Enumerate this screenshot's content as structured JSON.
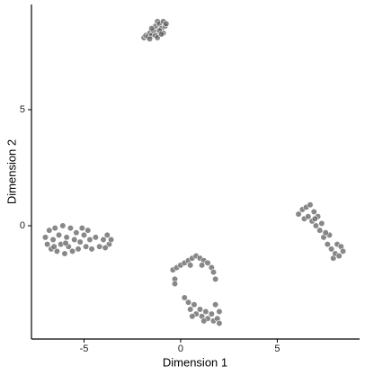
{
  "chart_data": {
    "type": "scatter",
    "x_label": "Dimension 1",
    "y_label": "Dimension 2",
    "color": "#555555",
    "xlim": [
      -7.72,
      9.26
    ],
    "ylim": [
      -4.88,
      9.53
    ],
    "xticks": [
      -5,
      0,
      5
    ],
    "yticks": [
      0,
      5
    ],
    "grid": false,
    "x": [
      -1.9,
      -1.8,
      -1.7,
      -1.6,
      -1.5,
      -1.4,
      -1.3,
      -1.2,
      -1.1,
      -1.0,
      -0.9,
      -0.8,
      -0.9,
      -1.3,
      -1.1,
      -0.75,
      -1.5,
      -1.2,
      -1.0,
      -1.6,
      -7.0,
      -6.9,
      -6.8,
      -6.7,
      -6.6,
      -6.5,
      -6.4,
      -6.3,
      -6.2,
      -6.1,
      -6.0,
      -5.9,
      -5.8,
      -5.7,
      -5.6,
      -5.5,
      -5.4,
      -5.3,
      -5.2,
      -5.1,
      -5.0,
      -4.9,
      -4.8,
      -4.7,
      -4.6,
      -4.4,
      -4.2,
      -4.0,
      -3.8,
      -3.7,
      -3.6,
      -3.9,
      -5.95,
      -6.55,
      -0.4,
      -0.3,
      -0.2,
      -0.3,
      0.0,
      0.2,
      0.4,
      0.6,
      0.8,
      1.0,
      1.2,
      1.4,
      1.6,
      1.7,
      1.8,
      0.5,
      1.1,
      0.2,
      0.4,
      0.5,
      0.7,
      0.8,
      1.0,
      1.1,
      1.3,
      1.4,
      1.6,
      1.7,
      1.9,
      2.0,
      1.8,
      2.0,
      0.6,
      1.2,
      6.1,
      6.3,
      6.4,
      6.5,
      6.6,
      6.7,
      6.8,
      6.9,
      7.0,
      7.1,
      7.2,
      7.3,
      7.4,
      7.6,
      7.7,
      7.8,
      7.9,
      8.0,
      8.1,
      8.2,
      8.3,
      8.4,
      7.5,
      6.95
    ],
    "values": [
      8.1,
      8.2,
      8.15,
      8.3,
      8.2,
      8.4,
      8.6,
      8.8,
      8.7,
      8.5,
      8.3,
      8.6,
      8.8,
      8.2,
      8.4,
      8.7,
      8.5,
      8.1,
      8.25,
      8.05,
      -0.5,
      -0.8,
      -0.2,
      -1.0,
      -0.6,
      -0.1,
      -1.1,
      -0.4,
      -0.8,
      0.0,
      -1.2,
      -0.5,
      -0.9,
      -0.1,
      -1.1,
      -0.6,
      -0.3,
      -1.0,
      -0.7,
      -0.1,
      -0.4,
      -0.9,
      -0.2,
      -0.6,
      -1.0,
      -0.5,
      -0.9,
      -0.6,
      -0.4,
      -0.8,
      -0.6,
      -0.95,
      -0.75,
      -0.9,
      -1.9,
      -2.3,
      -1.8,
      -2.5,
      -1.7,
      -1.6,
      -1.5,
      -1.4,
      -1.3,
      -1.4,
      -1.5,
      -1.6,
      -1.8,
      -2.0,
      -2.3,
      -1.7,
      -1.7,
      -3.1,
      -3.3,
      -3.6,
      -3.4,
      -3.8,
      -3.6,
      -3.9,
      -3.7,
      -4.0,
      -3.8,
      -4.1,
      -4.0,
      -4.2,
      -3.4,
      -3.7,
      -3.9,
      -4.1,
      0.5,
      0.7,
      0.3,
      0.8,
      0.4,
      0.9,
      0.2,
      0.6,
      0.0,
      0.4,
      -0.2,
      0.1,
      -0.5,
      -0.8,
      -0.4,
      -1.0,
      -1.4,
      -1.2,
      -0.8,
      -1.3,
      -0.9,
      -1.1,
      -0.3,
      0.3
    ]
  }
}
